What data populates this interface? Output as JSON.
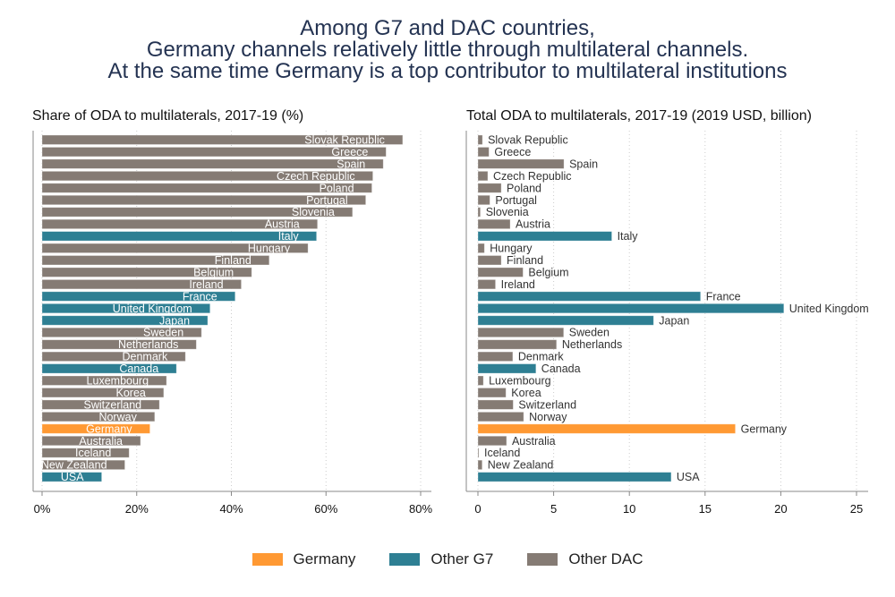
{
  "title_lines": [
    "Among G7 and DAC countries,",
    "Germany channels relatively little through multilateral channels.",
    "At the same time Germany is a top contributor to multilateral institutions"
  ],
  "colors": {
    "Germany": "#ff9933",
    "Other G7": "#2e7f93",
    "Other DAC": "#857b74"
  },
  "legend": [
    "Germany",
    "Other G7",
    "Other DAC"
  ],
  "chart_data": [
    {
      "type": "bar",
      "orientation": "horizontal",
      "title": "Share of ODA to multilaterals, 2017-19 (%)",
      "xlim": [
        0,
        80
      ],
      "ticks": [
        0,
        20,
        40,
        60,
        80
      ],
      "tick_labels": [
        "0%",
        "20%",
        "40%",
        "60%",
        "80%"
      ],
      "grid": true,
      "label_position": "inside-end",
      "categories": [
        "Slovak Republic",
        "Greece",
        "Spain",
        "Czech Republic",
        "Poland",
        "Portugal",
        "Slovenia",
        "Austria",
        "Italy",
        "Hungary",
        "Finland",
        "Belgium",
        "Ireland",
        "France",
        "United Kingdom",
        "Japan",
        "Sweden",
        "Netherlands",
        "Denmark",
        "Canada",
        "Luxembourg",
        "Korea",
        "Switzerland",
        "Norway",
        "Germany",
        "Australia",
        "Iceland",
        "New Zealand",
        "USA"
      ],
      "groups": [
        "Other DAC",
        "Other DAC",
        "Other DAC",
        "Other DAC",
        "Other DAC",
        "Other DAC",
        "Other DAC",
        "Other DAC",
        "Other G7",
        "Other DAC",
        "Other DAC",
        "Other DAC",
        "Other DAC",
        "Other G7",
        "Other G7",
        "Other G7",
        "Other DAC",
        "Other DAC",
        "Other DAC",
        "Other G7",
        "Other DAC",
        "Other DAC",
        "Other DAC",
        "Other DAC",
        "Germany",
        "Other DAC",
        "Other DAC",
        "Other DAC",
        "Other G7"
      ],
      "values": [
        76.2,
        72.7,
        72.1,
        69.9,
        69.7,
        68.4,
        65.6,
        58.2,
        58.0,
        56.2,
        48.0,
        44.3,
        42.1,
        40.8,
        35.5,
        35.0,
        33.7,
        32.6,
        30.3,
        28.4,
        26.3,
        25.7,
        24.8,
        23.8,
        22.8,
        20.8,
        18.4,
        17.5,
        12.6
      ]
    },
    {
      "type": "bar",
      "orientation": "horizontal",
      "title": "Total ODA to multilaterals, 2017-19 (2019 USD, billion)",
      "xlim": [
        0,
        25
      ],
      "ticks": [
        0,
        5,
        10,
        15,
        20,
        25
      ],
      "tick_labels": [
        "0",
        "5",
        "10",
        "15",
        "20",
        "25"
      ],
      "grid": true,
      "label_position": "outside-end",
      "categories": [
        "Slovak Republic",
        "Greece",
        "Spain",
        "Czech Republic",
        "Poland",
        "Portugal",
        "Slovenia",
        "Austria",
        "Italy",
        "Hungary",
        "Finland",
        "Belgium",
        "Ireland",
        "France",
        "United Kingdom",
        "Japan",
        "Sweden",
        "Netherlands",
        "Denmark",
        "Canada",
        "Luxembourg",
        "Korea",
        "Switzerland",
        "Norway",
        "Germany",
        "Australia",
        "Iceland",
        "New Zealand",
        "USA"
      ],
      "groups": [
        "Other DAC",
        "Other DAC",
        "Other DAC",
        "Other DAC",
        "Other DAC",
        "Other DAC",
        "Other DAC",
        "Other DAC",
        "Other G7",
        "Other DAC",
        "Other DAC",
        "Other DAC",
        "Other DAC",
        "Other G7",
        "Other G7",
        "Other G7",
        "Other DAC",
        "Other DAC",
        "Other DAC",
        "Other G7",
        "Other DAC",
        "Other DAC",
        "Other DAC",
        "Other DAC",
        "Germany",
        "Other DAC",
        "Other DAC",
        "Other DAC",
        "Other G7"
      ],
      "values": [
        0.3,
        0.73,
        5.68,
        0.65,
        1.54,
        0.79,
        0.16,
        2.13,
        8.84,
        0.43,
        1.54,
        2.98,
        1.16,
        14.7,
        20.2,
        11.6,
        5.66,
        5.19,
        2.3,
        3.83,
        0.36,
        1.85,
        2.33,
        3.02,
        17.0,
        1.89,
        0.06,
        0.28,
        12.76
      ]
    }
  ]
}
